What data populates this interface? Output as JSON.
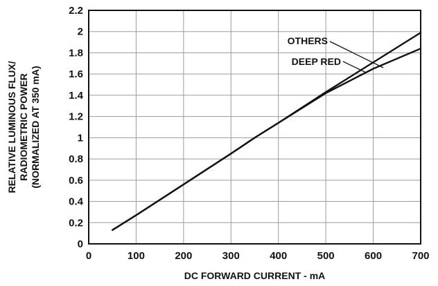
{
  "chart_data": {
    "type": "line",
    "title": "",
    "xlabel": "DC FORWARD CURRENT - mA",
    "ylabel_lines": [
      "RELATIVE LUMINOUS FLUX/",
      "RADIOMETRIC POWER",
      "(NORMALIZED AT 350 mA)"
    ],
    "xlim": [
      0,
      700
    ],
    "ylim": [
      0,
      2.2
    ],
    "xticks": [
      "0",
      "100",
      "200",
      "300",
      "400",
      "500",
      "600",
      "700"
    ],
    "yticks": [
      "0",
      "0.2",
      "0.4",
      "0.6",
      "0.8",
      "1",
      "1.2",
      "1.4",
      "1.6",
      "1.8",
      "2",
      "2.2"
    ],
    "grid": true,
    "colors": {
      "line": "#111111",
      "grid": "#9a9a9a",
      "axis": "#111111"
    },
    "series": [
      {
        "name": "OTHERS",
        "x": [
          50,
          100,
          200,
          300,
          350,
          400,
          500,
          600,
          700
        ],
        "y": [
          0.13,
          0.27,
          0.56,
          0.85,
          1.0,
          1.14,
          1.42,
          1.65,
          1.84
        ]
      },
      {
        "name": "DEEP RED",
        "x": [
          50,
          100,
          200,
          300,
          350,
          400,
          500,
          600,
          700
        ],
        "y": [
          0.13,
          0.27,
          0.56,
          0.85,
          1.0,
          1.14,
          1.43,
          1.71,
          1.99
        ]
      }
    ]
  }
}
